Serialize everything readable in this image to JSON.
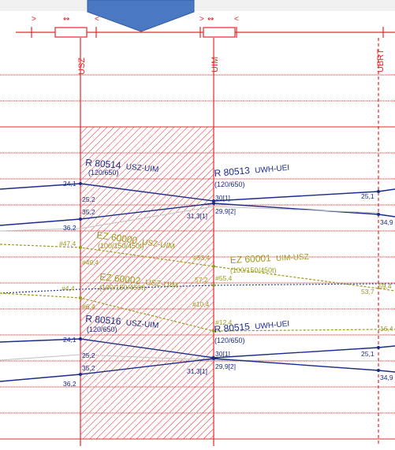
{
  "toolbar": {
    "left_markers": [
      ">",
      "↭",
      "<"
    ],
    "right_markers": [
      ">",
      "↭",
      "<"
    ]
  },
  "stations": [
    {
      "name": "USZ",
      "line": "solid"
    },
    {
      "name": "UIM",
      "line": "solid"
    },
    {
      "name": "UBRT",
      "line": "dashed"
    }
  ],
  "occupation_block": {
    "from": "USZ",
    "to": "UIM",
    "color": "#e8262a"
  },
  "colors": {
    "grid": "#e8262a",
    "rail": "#1a2b8c",
    "freight": "#9a9a1a",
    "nav_shape": "#4a78c2"
  },
  "trains": [
    {
      "name": "R 80514",
      "route": "USZ-UIM",
      "params": "(120/650)",
      "color": "#1a2b8c",
      "times": [
        "24,1",
        "25,2",
        "35,2",
        "36,2",
        "31,3[1]"
      ]
    },
    {
      "name": "R 80513",
      "route": "UWH-UEI",
      "params": "(120/650)",
      "color": "#1a2b8c",
      "times": [
        "30[1]",
        "29,9[2]",
        "25,1",
        "34,9"
      ]
    },
    {
      "name": "EZ 60000",
      "route": "USZ-UIM",
      "params": "(100/150/450t)",
      "color": "#9a9a1a",
      "times": [
        "#47,4",
        "#49,4",
        "#53,4"
      ]
    },
    {
      "name": "EZ 60001",
      "route": "UIM-USZ",
      "params": "(100/150/450t)",
      "color": "#9a9a1a",
      "times": [
        "53,7",
        "59,4"
      ]
    },
    {
      "name": "EZ 60002",
      "route": "USZ-UIM",
      "params": "(100/150/450t)",
      "color": "#9a9a1a",
      "times": [
        "#4,4",
        "57,2",
        "#55,4",
        "#6,4",
        "#10,4",
        "#12,4"
      ]
    },
    {
      "name": "R 80516",
      "route": "USZ-UIM",
      "params": "(120/650)",
      "color": "#1a2b8c",
      "times": [
        "24,1",
        "25,2",
        "35,2",
        "36,2",
        "31,3[1]"
      ]
    },
    {
      "name": "R 80515",
      "route": "UWH-UEI",
      "params": "(120/650)",
      "color": "#1a2b8c",
      "times": [
        "30[1]",
        "29,9[2]",
        "25,1",
        "16,4",
        "34,9"
      ]
    }
  ]
}
